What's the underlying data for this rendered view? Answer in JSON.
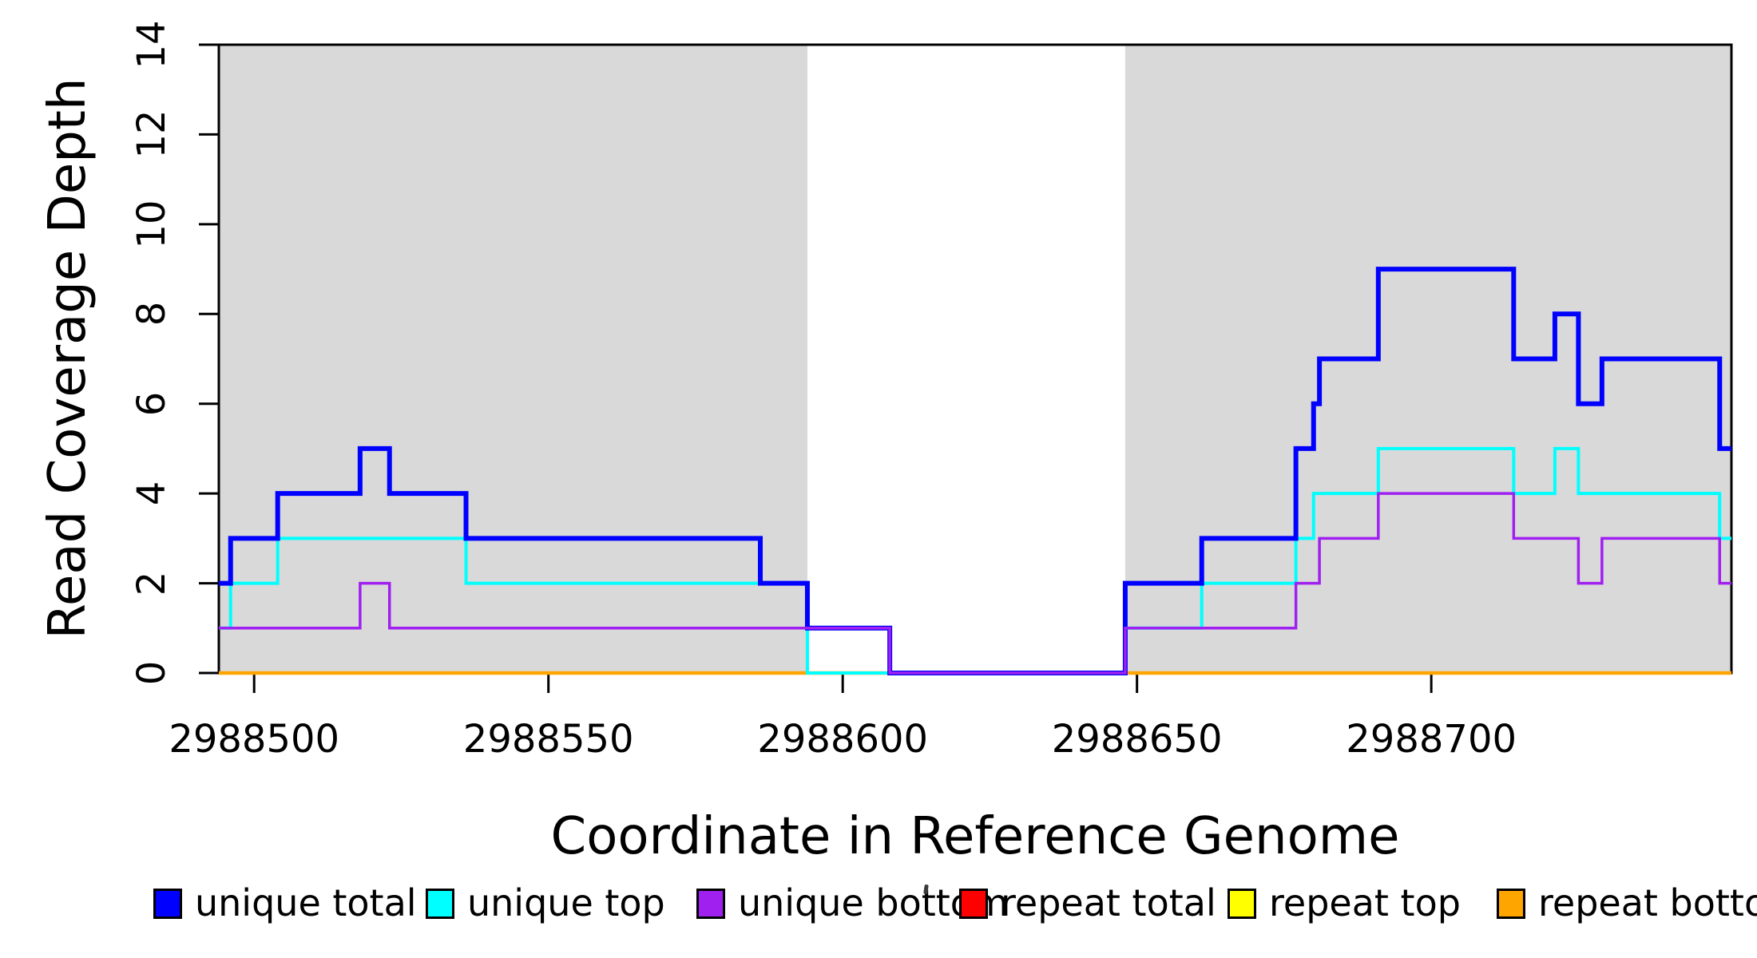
{
  "figure": {
    "xlabel": "Coordinate in Reference Genome",
    "ylabel": "Read Coverage Depth"
  },
  "chart_data": {
    "type": "line",
    "subtype": "step-coverage",
    "title": "",
    "xlabel": "Coordinate in Reference Genome",
    "ylabel": "Read Coverage Depth",
    "xlim": [
      2988494,
      2988751
    ],
    "ylim": [
      0,
      14
    ],
    "x_ticks": [
      2988500,
      2988550,
      2988600,
      2988650,
      2988700
    ],
    "y_ticks": [
      0,
      2,
      4,
      6,
      8,
      10,
      12,
      14
    ],
    "grid": false,
    "background_color": "#FFFFFF",
    "axis_color": "#000000",
    "shaded_regions": {
      "color": "#D9D9D9",
      "ranges": [
        [
          2988494,
          2988594
        ],
        [
          2988648,
          2988751
        ]
      ]
    },
    "legend_position": "bottom",
    "series": [
      {
        "name": "unique total",
        "color": "#0000FF",
        "segments": [
          [
            2988494,
            2988496,
            2
          ],
          [
            2988496,
            2988504,
            3
          ],
          [
            2988504,
            2988518,
            4
          ],
          [
            2988518,
            2988523,
            5
          ],
          [
            2988523,
            2988536,
            4
          ],
          [
            2988536,
            2988586,
            3
          ],
          [
            2988586,
            2988594,
            2
          ],
          [
            2988594,
            2988608,
            1
          ],
          [
            2988608,
            2988648,
            0
          ],
          [
            2988648,
            2988661,
            2
          ],
          [
            2988661,
            2988677,
            3
          ],
          [
            2988677,
            2988680,
            5
          ],
          [
            2988680,
            2988681,
            6
          ],
          [
            2988681,
            2988691,
            7
          ],
          [
            2988691,
            2988714,
            9
          ],
          [
            2988714,
            2988721,
            7
          ],
          [
            2988721,
            2988725,
            8
          ],
          [
            2988725,
            2988729,
            6
          ],
          [
            2988729,
            2988749,
            7
          ],
          [
            2988749,
            2988751,
            5
          ]
        ]
      },
      {
        "name": "unique top",
        "color": "#00FFFF",
        "segments": [
          [
            2988494,
            2988496,
            1
          ],
          [
            2988496,
            2988504,
            2
          ],
          [
            2988504,
            2988536,
            3
          ],
          [
            2988536,
            2988594,
            2
          ],
          [
            2988594,
            2988648,
            0
          ],
          [
            2988648,
            2988661,
            1
          ],
          [
            2988661,
            2988677,
            2
          ],
          [
            2988677,
            2988680,
            3
          ],
          [
            2988680,
            2988691,
            4
          ],
          [
            2988691,
            2988714,
            5
          ],
          [
            2988714,
            2988721,
            4
          ],
          [
            2988721,
            2988725,
            5
          ],
          [
            2988725,
            2988749,
            4
          ],
          [
            2988749,
            2988751,
            3
          ]
        ]
      },
      {
        "name": "unique bottom",
        "color": "#A020F0",
        "segments": [
          [
            2988494,
            2988518,
            1
          ],
          [
            2988518,
            2988523,
            2
          ],
          [
            2988523,
            2988608,
            1
          ],
          [
            2988608,
            2988648,
            0
          ],
          [
            2988648,
            2988677,
            1
          ],
          [
            2988677,
            2988681,
            2
          ],
          [
            2988681,
            2988691,
            3
          ],
          [
            2988691,
            2988714,
            4
          ],
          [
            2988714,
            2988725,
            3
          ],
          [
            2988725,
            2988729,
            2
          ],
          [
            2988729,
            2988749,
            3
          ],
          [
            2988749,
            2988751,
            2
          ]
        ]
      },
      {
        "name": "repeat total",
        "color": "#FF0000",
        "segments": [
          [
            2988494,
            2988751,
            0
          ]
        ]
      },
      {
        "name": "repeat top",
        "color": "#FFFF00",
        "segments": [
          [
            2988494,
            2988751,
            0
          ]
        ]
      },
      {
        "name": "repeat bottom",
        "color": "#FFA500",
        "segments": [
          [
            2988494,
            2988751,
            0
          ]
        ]
      }
    ],
    "legend": [
      {
        "label": "unique total",
        "color": "#0000FF"
      },
      {
        "label": "unique top",
        "color": "#00FFFF"
      },
      {
        "label": "unique bottom",
        "color": "#A020F0"
      },
      {
        "label": "repeat total",
        "color": "#FF0000"
      },
      {
        "label": "repeat top",
        "color": "#FFFF00"
      },
      {
        "label": "repeat bottom",
        "color": "#FFA500"
      }
    ]
  }
}
